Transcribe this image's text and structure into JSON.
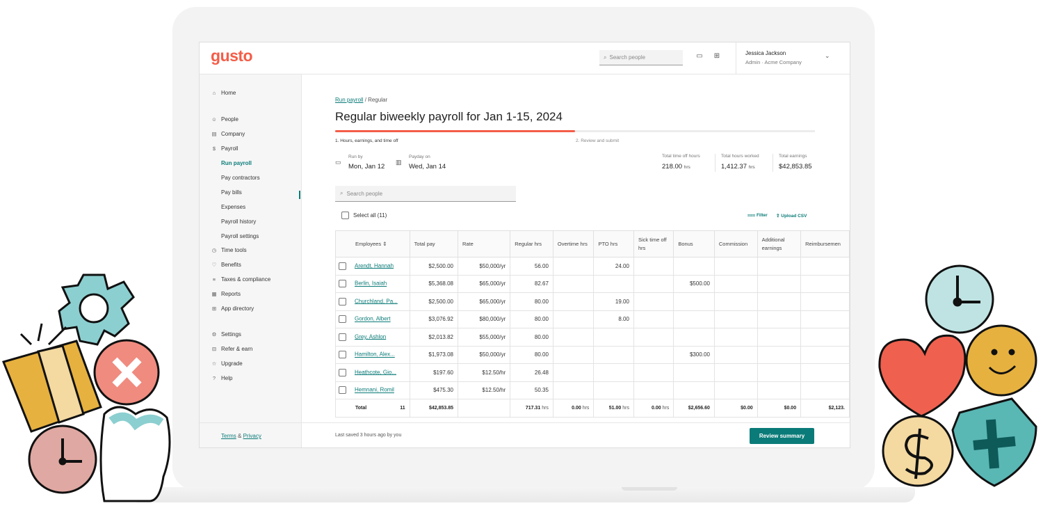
{
  "app": {
    "logo": "gusto"
  },
  "topbar": {
    "search_placeholder": "Search people",
    "calendar_icon": "calendar-icon",
    "gift_icon": "gift-icon",
    "user": {
      "name": "Jessica Jackson",
      "role": "Admin · Acme Company"
    }
  },
  "sidebar": {
    "items": [
      {
        "label": "Home",
        "icon": "home-icon"
      },
      {
        "label": "People",
        "icon": "people-icon"
      },
      {
        "label": "Company",
        "icon": "company-icon"
      },
      {
        "label": "Payroll",
        "icon": "payroll-icon"
      },
      {
        "label": "Time tools",
        "icon": "clock-icon"
      },
      {
        "label": "Benefits",
        "icon": "heart-icon"
      },
      {
        "label": "Taxes & compliance",
        "icon": "list-icon"
      },
      {
        "label": "Reports",
        "icon": "reports-icon"
      },
      {
        "label": "App directory",
        "icon": "grid-icon"
      },
      {
        "label": "Settings",
        "icon": "gear-icon"
      },
      {
        "label": "Refer & earn",
        "icon": "gift-icon"
      },
      {
        "label": "Upgrade",
        "icon": "star-icon"
      },
      {
        "label": "Help",
        "icon": "help-icon"
      }
    ],
    "payroll_sub": [
      "Run payroll",
      "Pay contractors",
      "Pay bills",
      "Expenses",
      "Payroll history",
      "Payroll settings"
    ],
    "footer": {
      "terms": "Terms",
      "amp": "&",
      "privacy": "Privacy"
    }
  },
  "page": {
    "breadcrumb_link": "Run payroll",
    "breadcrumb_rest": "/ Regular",
    "title": "Regular biweekly payroll for Jan 1-15, 2024",
    "progress_fraction": 0.5,
    "step1": "1. Hours, earnings, and time off",
    "step2": "2. Review and submit",
    "run_by_label": "Run by",
    "run_by_value": "Mon, Jan 12",
    "payday_label": "Payday on",
    "payday_value": "Wed, Jan 14",
    "totals": [
      {
        "label": "Total time off hours",
        "value": "218.00",
        "unit": "hrs"
      },
      {
        "label": "Total hours worked",
        "value": "1,412.37",
        "unit": "hrs"
      },
      {
        "label": "Total earnings",
        "value": "$42,853.85",
        "unit": ""
      }
    ],
    "search_placeholder": "Search people",
    "select_all": "Select all (11)",
    "filter": "Filter",
    "upload_csv": "Upload CSV"
  },
  "table": {
    "headers": {
      "employees": "Employees",
      "total_pay": "Total pay",
      "rate": "Rate",
      "regular": "Regular hrs",
      "overtime": "Overtime hrs",
      "pto": "PTO hrs",
      "sick": "Sick time off hrs",
      "bonus": "Bonus",
      "commission": "Commission",
      "additional": "Additional earnings",
      "reimb": "Reimbursemen"
    },
    "rows": [
      {
        "name": "Arendt, Hannah",
        "pay": "$2,500.00",
        "rate": "$50,000/yr",
        "reg": "56.00",
        "ot": "",
        "pto": "24.00",
        "sick": "",
        "bonus": "",
        "comm": "",
        "add": "",
        "reimb": ""
      },
      {
        "name": "Berlin, Isaiah",
        "pay": "$5,368.08",
        "rate": "$65,000/yr",
        "reg": "82.67",
        "ot": "",
        "pto": "",
        "sick": "",
        "bonus": "$500.00",
        "comm": "",
        "add": "",
        "reimb": ""
      },
      {
        "name": "Churchland, Pa...",
        "pay": "$2,500.00",
        "rate": "$65,000/yr",
        "reg": "80.00",
        "ot": "",
        "pto": "19.00",
        "sick": "",
        "bonus": "",
        "comm": "",
        "add": "",
        "reimb": ""
      },
      {
        "name": "Gordon, Albert",
        "pay": "$3,076.92",
        "rate": "$80,000/yr",
        "reg": "80.00",
        "ot": "",
        "pto": "8.00",
        "sick": "",
        "bonus": "",
        "comm": "",
        "add": "",
        "reimb": ""
      },
      {
        "name": "Grey, Ashlon",
        "pay": "$2,013.82",
        "rate": "$55,000/yr",
        "reg": "80.00",
        "ot": "",
        "pto": "",
        "sick": "",
        "bonus": "",
        "comm": "",
        "add": "",
        "reimb": ""
      },
      {
        "name": "Hamilton, Alex...",
        "pay": "$1,973.08",
        "rate": "$50,000/yr",
        "reg": "80.00",
        "ot": "",
        "pto": "",
        "sick": "",
        "bonus": "$300.00",
        "comm": "",
        "add": "",
        "reimb": ""
      },
      {
        "name": "Heathcote, Gio...",
        "pay": "$197.60",
        "rate": "$12.50/hr",
        "reg": "26.48",
        "ot": "",
        "pto": "",
        "sick": "",
        "bonus": "",
        "comm": "",
        "add": "",
        "reimb": ""
      },
      {
        "name": "Hemnani, Romil",
        "pay": "$475.30",
        "rate": "$12.50/hr",
        "reg": "50.35",
        "ot": "",
        "pto": "",
        "sick": "",
        "bonus": "",
        "comm": "",
        "add": "",
        "reimb": ""
      }
    ],
    "total_row": {
      "label": "Total",
      "count": "11",
      "pay": "$42,853.85",
      "reg": "717.31",
      "ot": "0.00",
      "pto": "51.00",
      "sick": "0.00",
      "bonus": "$2,656.60",
      "comm": "$0.00",
      "add": "$0.00",
      "reimb": "$2,123.",
      "unit": "hrs"
    }
  },
  "footer": {
    "saved": "Last saved 3 hours ago by you",
    "review_button": "Review summary"
  },
  "colors": {
    "brand": "#f45d48",
    "accent": "#0a7b78"
  }
}
